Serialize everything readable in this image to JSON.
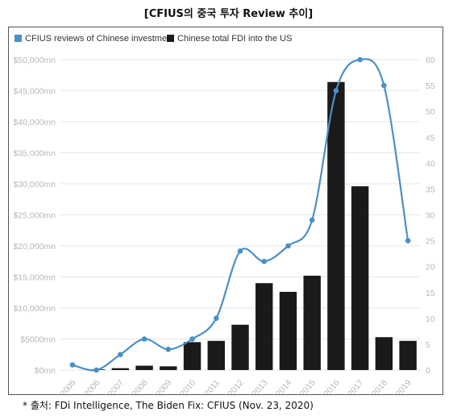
{
  "title": "[CFIUS의 중국 투자 Review 추이]",
  "footnote": "* 출처: FDi Intelligence, The Biden Fix: CFIUS (Nov. 23, 2020)",
  "chart_data": {
    "type": "bar",
    "categories": [
      "2005",
      "2006",
      "2007",
      "2008",
      "2009",
      "2010",
      "2011",
      "2012",
      "2013",
      "2014",
      "2015",
      "2016",
      "2017",
      "2018",
      "2019"
    ],
    "series": [
      {
        "name": "CFIUS reviews of Chinese investment",
        "type": "line",
        "axis": "right",
        "color": "#4a90c8",
        "values": [
          1,
          0,
          3,
          6,
          4,
          6,
          10,
          23,
          21,
          24,
          29,
          54,
          60,
          55,
          25
        ]
      },
      {
        "name": "Chinese total FDI into the US",
        "type": "bar",
        "axis": "left",
        "color": "#1a1a1a",
        "values": [
          0,
          100,
          300,
          700,
          600,
          4500,
          4700,
          7300,
          14000,
          12600,
          15200,
          46400,
          29600,
          5300,
          4700
        ]
      }
    ],
    "y_left": {
      "min": 0,
      "max": 50000,
      "ticks": [
        "$0mn",
        "$5000mn",
        "$10,000mn",
        "$15,000mn",
        "$20,000mn",
        "$25,000mn",
        "$30,000mn",
        "$35,000mn",
        "$40,000mn",
        "$45,000mn",
        "$50,000mn"
      ]
    },
    "y_right": {
      "min": 0,
      "max": 60,
      "ticks": [
        "0",
        "5",
        "10",
        "15",
        "20",
        "25",
        "30",
        "35",
        "40",
        "45",
        "50",
        "55",
        "60"
      ]
    },
    "grid": true,
    "legend": "top-left",
    "colors": {
      "line": "#4a90c8",
      "bar": "#1a1a1a",
      "tick": "#b8b8b8",
      "grid": "#e6e6e6"
    }
  }
}
